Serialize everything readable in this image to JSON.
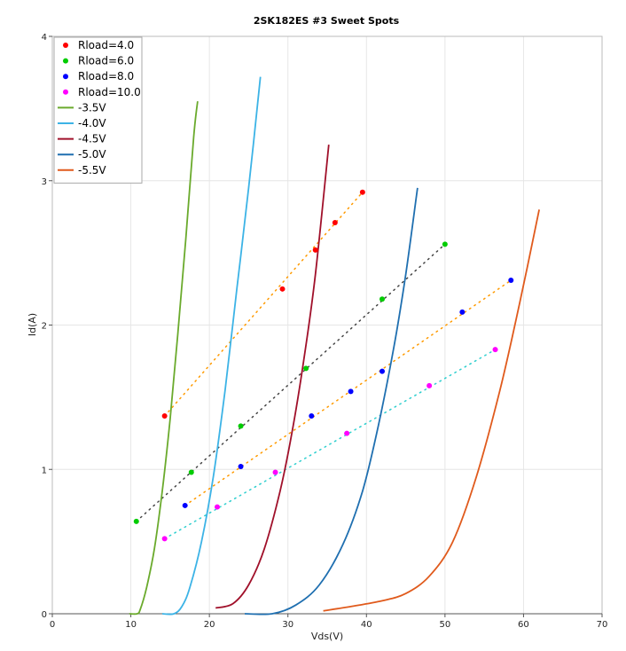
{
  "chart_data": {
    "type": "scatter",
    "title": "2SK182ES #3 Sweet Spots",
    "xlabel": "Vds(V)",
    "ylabel": "Id(A)",
    "xlim": [
      0,
      70
    ],
    "ylim": [
      0,
      4
    ],
    "xticks": [
      0,
      10,
      20,
      30,
      40,
      50,
      60,
      70
    ],
    "yticks": [
      0,
      1,
      2,
      3,
      4
    ],
    "grid": true,
    "legend_position": "top-left",
    "points": [
      {
        "name": "Rload=4.0",
        "color": "#ff0000",
        "x": [
          14.3,
          29.3,
          33.5,
          36.0,
          39.5
        ],
        "y": [
          1.37,
          2.25,
          2.52,
          2.71,
          2.92
        ]
      },
      {
        "name": "Rload=6.0",
        "color": "#00cc00",
        "x": [
          10.7,
          17.7,
          24.0,
          32.3,
          42.0,
          50.0
        ],
        "y": [
          0.64,
          0.98,
          1.3,
          1.7,
          2.18,
          2.56
        ]
      },
      {
        "name": "Rload=8.0",
        "color": "#0000ff",
        "x": [
          16.9,
          24.0,
          33.0,
          38.0,
          42.0,
          52.2,
          58.4
        ],
        "y": [
          0.75,
          1.02,
          1.37,
          1.54,
          1.68,
          2.09,
          2.31
        ]
      },
      {
        "name": "Rload=10.0",
        "color": "#ff00ff",
        "x": [
          14.3,
          21.0,
          28.4,
          37.5,
          48.0,
          56.4
        ],
        "y": [
          0.52,
          0.74,
          0.98,
          1.25,
          1.58,
          1.83
        ]
      }
    ],
    "dotted_lines": [
      {
        "color": "#ff9a00",
        "x": [
          14.3,
          39.5
        ],
        "y": [
          1.37,
          2.92
        ]
      },
      {
        "color": "#444444",
        "x": [
          10.7,
          50.0
        ],
        "y": [
          0.64,
          2.56
        ]
      },
      {
        "color": "#ff9a00",
        "x": [
          16.9,
          58.4
        ],
        "y": [
          0.75,
          2.31
        ]
      },
      {
        "color": "#2fcfcf",
        "x": [
          14.3,
          56.4
        ],
        "y": [
          0.52,
          1.83
        ]
      }
    ],
    "curves": [
      {
        "name": "-3.5V",
        "color": "#6aaa2c",
        "x": [
          9.8,
          10.8,
          11.2,
          12.0,
          13.0,
          14.0,
          15.0,
          16.0,
          17.0,
          18.0,
          18.5
        ],
        "y": [
          0.0,
          0.0,
          0.03,
          0.18,
          0.45,
          0.85,
          1.35,
          1.95,
          2.6,
          3.3,
          3.55
        ]
      },
      {
        "name": "-4.0V",
        "color": "#3cb3e6",
        "x": [
          14.0,
          15.5,
          16.5,
          17.5,
          19.0,
          20.5,
          22.0,
          23.5,
          25.0,
          26.5
        ],
        "y": [
          0.0,
          0.0,
          0.05,
          0.18,
          0.5,
          0.95,
          1.55,
          2.25,
          2.95,
          3.72
        ]
      },
      {
        "name": "-4.5V",
        "color": "#a0102a",
        "x": [
          20.8,
          23.0,
          25.0,
          27.0,
          29.0,
          30.5,
          32.0,
          33.5,
          35.2
        ],
        "y": [
          0.04,
          0.07,
          0.2,
          0.45,
          0.85,
          1.25,
          1.75,
          2.35,
          3.25
        ]
      },
      {
        "name": "-5.0V",
        "color": "#1f6fb0",
        "x": [
          24.5,
          28.0,
          31.0,
          34.0,
          37.0,
          39.5,
          41.5,
          43.5,
          45.0,
          46.5
        ],
        "y": [
          0.0,
          0.0,
          0.06,
          0.2,
          0.48,
          0.85,
          1.3,
          1.85,
          2.35,
          2.95
        ]
      },
      {
        "name": "-5.5V",
        "color": "#e05a1c",
        "x": [
          34.5,
          38.0,
          42.0,
          45.0,
          48.0,
          51.0,
          54.0,
          57.0,
          59.5,
          62.0
        ],
        "y": [
          0.02,
          0.05,
          0.09,
          0.14,
          0.26,
          0.5,
          0.95,
          1.55,
          2.15,
          2.8
        ]
      }
    ]
  }
}
